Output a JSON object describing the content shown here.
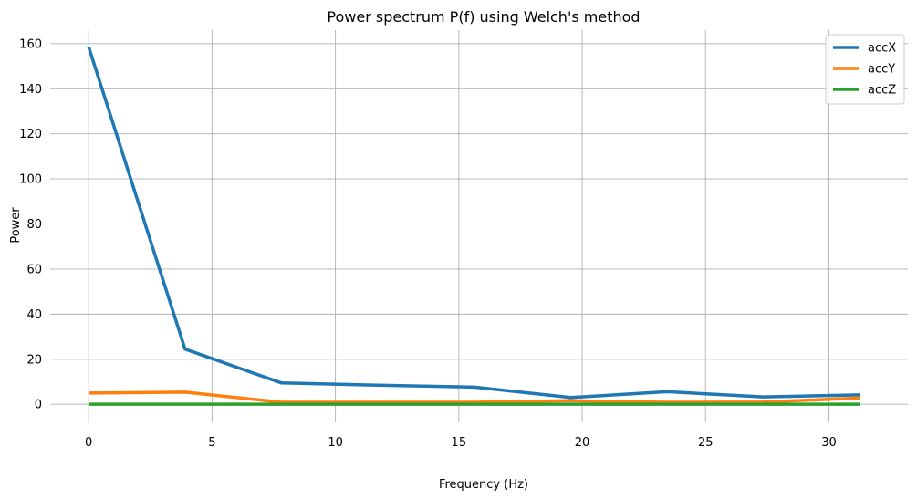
{
  "chart_data": {
    "type": "line",
    "title": "Power spectrum P(f) using Welch's method",
    "xlabel": "Frequency (Hz)",
    "ylabel": "Power",
    "xlim": [
      -1.56,
      33.2
    ],
    "ylim": [
      -8,
      166
    ],
    "xticks": [
      0,
      5,
      10,
      15,
      20,
      25,
      30
    ],
    "yticks": [
      0,
      20,
      40,
      60,
      80,
      100,
      120,
      140,
      160
    ],
    "grid": true,
    "legend_position": "top-right",
    "x": [
      0,
      3.906,
      7.8125,
      11.719,
      15.625,
      19.531,
      23.438,
      27.344,
      31.25
    ],
    "series": [
      {
        "name": "accX",
        "color": "#1f77b4",
        "values": [
          158.5,
          24.5,
          9.5,
          8.5,
          7.6,
          3.0,
          5.6,
          3.3,
          4.2
        ]
      },
      {
        "name": "accY",
        "color": "#ff7f0e",
        "values": [
          5.0,
          5.4,
          0.9,
          0.9,
          0.9,
          1.6,
          0.9,
          1.0,
          2.8
        ]
      },
      {
        "name": "accZ",
        "color": "#2ca02c",
        "values": [
          0.05,
          0.05,
          0.05,
          0.05,
          0.05,
          0.05,
          0.05,
          0.05,
          0.05
        ]
      }
    ]
  }
}
